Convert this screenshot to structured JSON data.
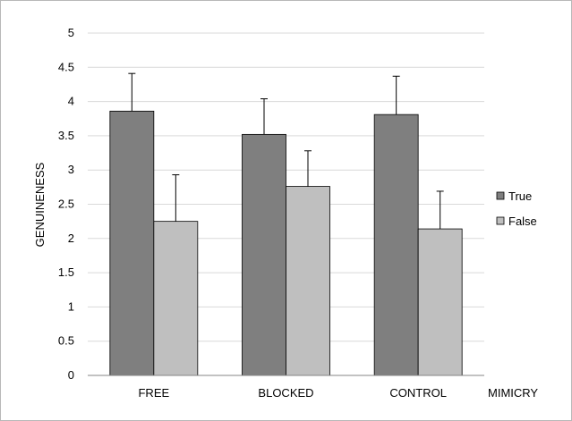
{
  "chart_data": {
    "type": "bar",
    "title": "",
    "xlabel": "MIMICRY",
    "ylabel": "GENUINENESS",
    "categories": [
      "FREE",
      "BLOCKED",
      "CONTROL"
    ],
    "series": [
      {
        "name": "True",
        "color": "#7f7f7f",
        "values": [
          3.86,
          3.52,
          3.81
        ],
        "errors": [
          0.55,
          0.52,
          0.56
        ]
      },
      {
        "name": "False",
        "color": "#bfbfbf",
        "values": [
          2.25,
          2.76,
          2.14
        ],
        "errors": [
          0.68,
          0.52,
          0.55
        ]
      }
    ],
    "ylim": [
      0,
      5
    ],
    "yticks": [
      "0",
      "0.5",
      "1",
      "1.5",
      "2",
      "2.5",
      "3",
      "3.5",
      "4",
      "4.5",
      "5"
    ],
    "grid": true,
    "legend_position": "right"
  }
}
